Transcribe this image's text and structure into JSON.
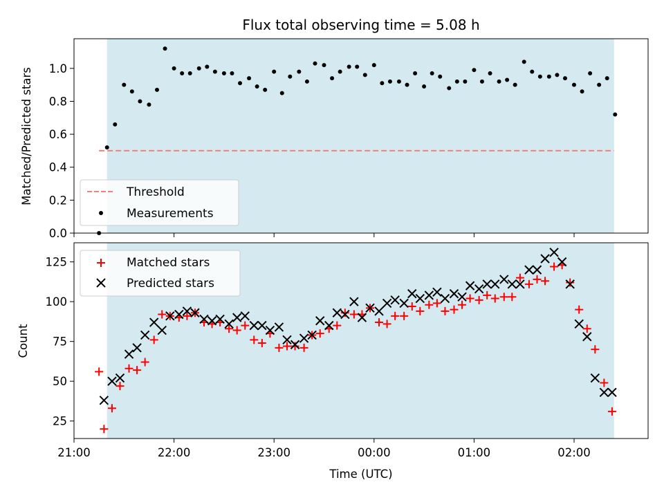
{
  "colors": {
    "shade": "#d4eaf0",
    "threshold": "#f08080",
    "matched": "#ff0000",
    "predicted": "#000000",
    "measurement": "#000000"
  },
  "chart_data": [
    {
      "type": "scatter",
      "title": "Flux total observing time = 5.08 h",
      "xlabel": "",
      "ylabel": "Matched/Predicted stars",
      "xlim_hours": [
        21.0,
        26.74
      ],
      "ylim": [
        0,
        1.18
      ],
      "yticks": [
        0.0,
        0.2,
        0.4,
        0.6,
        0.8,
        1.0
      ],
      "ytick_labels": [
        "0.0",
        "0.2",
        "0.4",
        "0.6",
        "0.8",
        "1.0"
      ],
      "shaded_interval_hours": [
        21.33,
        26.4
      ],
      "threshold": {
        "name": "Threshold",
        "value": 0.5,
        "x_start": 21.25,
        "x_end": 26.4
      },
      "legend": {
        "position": "lower-left",
        "entries": [
          "Threshold",
          "Measurements"
        ]
      },
      "series": [
        {
          "name": "Measurements",
          "x": [
            21.25,
            21.33,
            21.41,
            21.5,
            21.58,
            21.66,
            21.75,
            21.83,
            21.91,
            22.0,
            22.08,
            22.16,
            22.25,
            22.33,
            22.41,
            22.5,
            22.58,
            22.66,
            22.75,
            22.83,
            22.91,
            23.0,
            23.08,
            23.16,
            23.25,
            23.33,
            23.41,
            23.5,
            23.58,
            23.66,
            23.75,
            23.83,
            23.91,
            24.0,
            24.08,
            24.16,
            24.25,
            24.33,
            24.41,
            24.5,
            24.58,
            24.66,
            24.75,
            24.83,
            24.91,
            25.0,
            25.08,
            25.16,
            25.25,
            25.33,
            25.41,
            25.5,
            25.58,
            25.66,
            25.75,
            25.83,
            25.91,
            26.0,
            26.08,
            26.16,
            26.25,
            26.33,
            26.41
          ],
          "y": [
            0.0,
            0.52,
            0.66,
            0.9,
            0.86,
            0.8,
            0.78,
            0.87,
            1.12,
            1.0,
            0.97,
            0.97,
            1.0,
            1.01,
            0.98,
            0.97,
            0.97,
            0.91,
            0.94,
            0.89,
            0.87,
            0.98,
            0.85,
            0.95,
            0.98,
            0.92,
            1.03,
            1.02,
            0.94,
            0.98,
            1.01,
            1.01,
            0.96,
            1.02,
            0.91,
            0.92,
            0.92,
            0.9,
            0.97,
            0.89,
            0.97,
            0.95,
            0.88,
            0.92,
            0.92,
            0.99,
            0.92,
            0.97,
            0.92,
            0.93,
            0.9,
            1.04,
            0.98,
            0.95,
            0.95,
            0.96,
            0.94,
            0.9,
            0.86,
            0.97,
            0.9,
            0.94,
            0.72
          ]
        }
      ]
    },
    {
      "type": "scatter",
      "title": "",
      "xlabel": "Time (UTC)",
      "ylabel": "Count",
      "xlim_hours": [
        21.0,
        26.74
      ],
      "ylim": [
        14,
        137
      ],
      "yticks": [
        25,
        50,
        75,
        100,
        125
      ],
      "ytick_labels": [
        "25",
        "50",
        "75",
        "100",
        "125"
      ],
      "xticks_hours": [
        21,
        22,
        23,
        24,
        25,
        26
      ],
      "xtick_labels": [
        "21:00",
        "22:00",
        "23:00",
        "00:00",
        "01:00",
        "02:00"
      ],
      "shaded_interval_hours": [
        21.33,
        26.4
      ],
      "legend": {
        "position": "upper-left",
        "entries": [
          "Matched stars",
          "Predicted stars"
        ]
      },
      "series": [
        {
          "name": "Matched stars",
          "marker": "plus",
          "x": [
            21.25,
            21.3,
            21.38,
            21.46,
            21.55,
            21.63,
            21.71,
            21.8,
            21.88,
            21.96,
            22.05,
            22.13,
            22.21,
            22.3,
            22.38,
            22.46,
            22.55,
            22.63,
            22.71,
            22.8,
            22.88,
            22.96,
            23.05,
            23.13,
            23.21,
            23.3,
            23.38,
            23.46,
            23.55,
            23.63,
            23.71,
            23.8,
            23.88,
            23.96,
            24.05,
            24.13,
            24.21,
            24.3,
            24.38,
            24.46,
            24.55,
            24.63,
            24.71,
            24.8,
            24.88,
            24.96,
            25.05,
            25.13,
            25.21,
            25.3,
            25.38,
            25.46,
            25.55,
            25.63,
            25.71,
            25.8,
            25.88,
            25.96,
            26.05,
            26.13,
            26.21,
            26.3,
            26.38
          ],
          "y": [
            56,
            20,
            33,
            47,
            58,
            57,
            62,
            76,
            92,
            91,
            90,
            91,
            93,
            87,
            86,
            87,
            83,
            82,
            85,
            76,
            74,
            80,
            71,
            72,
            72,
            71,
            79,
            80,
            83,
            85,
            93,
            92,
            92,
            96,
            87,
            86,
            91,
            91,
            97,
            94,
            98,
            99,
            94,
            95,
            98,
            102,
            101,
            104,
            102,
            103,
            103,
            115,
            111,
            114,
            113,
            122,
            123,
            112,
            95,
            83,
            70,
            49,
            31
          ]
        },
        {
          "name": "Predicted stars",
          "marker": "x",
          "x": [
            21.3,
            21.38,
            21.46,
            21.55,
            21.63,
            21.71,
            21.8,
            21.88,
            21.96,
            22.05,
            22.13,
            22.21,
            22.3,
            22.38,
            22.46,
            22.55,
            22.63,
            22.71,
            22.8,
            22.88,
            22.96,
            23.05,
            23.13,
            23.21,
            23.3,
            23.38,
            23.46,
            23.55,
            23.63,
            23.71,
            23.8,
            23.88,
            23.96,
            24.05,
            24.13,
            24.21,
            24.3,
            24.38,
            24.46,
            24.55,
            24.63,
            24.71,
            24.8,
            24.88,
            24.96,
            25.05,
            25.13,
            25.21,
            25.3,
            25.38,
            25.46,
            25.55,
            25.63,
            25.71,
            25.8,
            25.88,
            25.96,
            26.05,
            26.13,
            26.21,
            26.3,
            26.38
          ],
          "y": [
            38,
            50,
            52,
            67,
            71,
            79,
            87,
            82,
            91,
            92,
            94,
            93,
            89,
            88,
            89,
            86,
            90,
            91,
            85,
            85,
            82,
            84,
            76,
            73,
            77,
            79,
            88,
            85,
            93,
            92,
            100,
            90,
            96,
            94,
            99,
            101,
            99,
            105,
            102,
            104,
            106,
            102,
            105,
            103,
            110,
            108,
            111,
            111,
            114,
            111,
            111,
            120,
            120,
            127,
            131,
            125,
            111,
            86,
            78,
            52,
            43,
            43
          ]
        }
      ]
    }
  ]
}
